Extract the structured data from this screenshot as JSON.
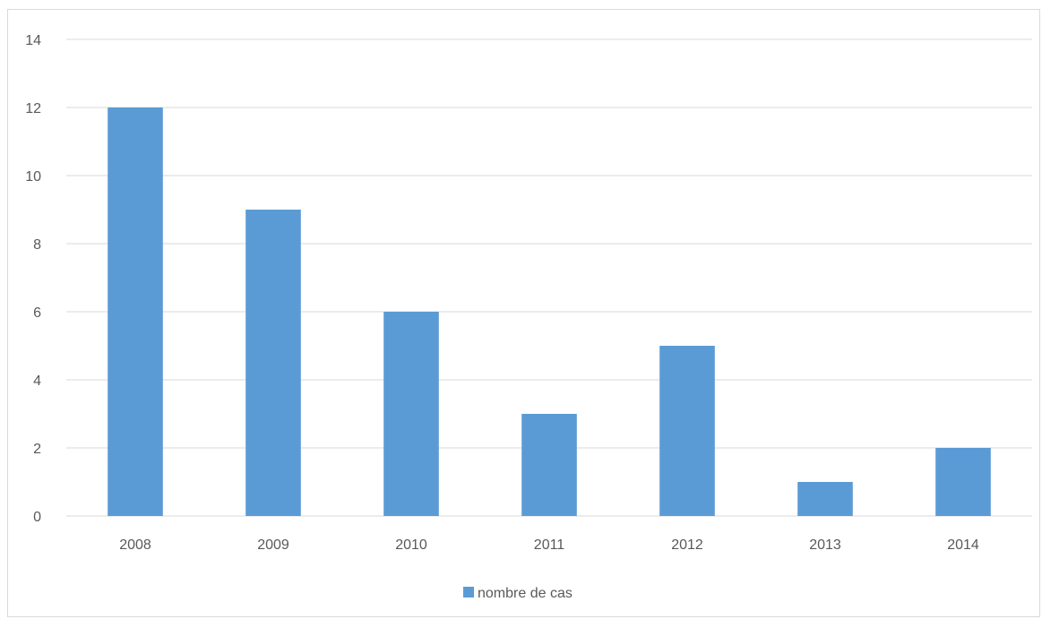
{
  "chart_data": {
    "type": "bar",
    "categories": [
      "2008",
      "2009",
      "2010",
      "2011",
      "2012",
      "2013",
      "2014"
    ],
    "series": [
      {
        "name": "nombre de cas",
        "values": [
          12,
          9,
          6,
          3,
          5,
          1,
          2
        ]
      }
    ],
    "title": "",
    "xlabel": "",
    "ylabel": "",
    "ylim": [
      0,
      14
    ],
    "yticks": [
      0,
      2,
      4,
      6,
      8,
      10,
      12,
      14
    ],
    "grid": true,
    "legend_position": "bottom",
    "colors": {
      "bar": "#5b9bd5",
      "grid": "#d9d9d9",
      "text": "#595959"
    }
  }
}
